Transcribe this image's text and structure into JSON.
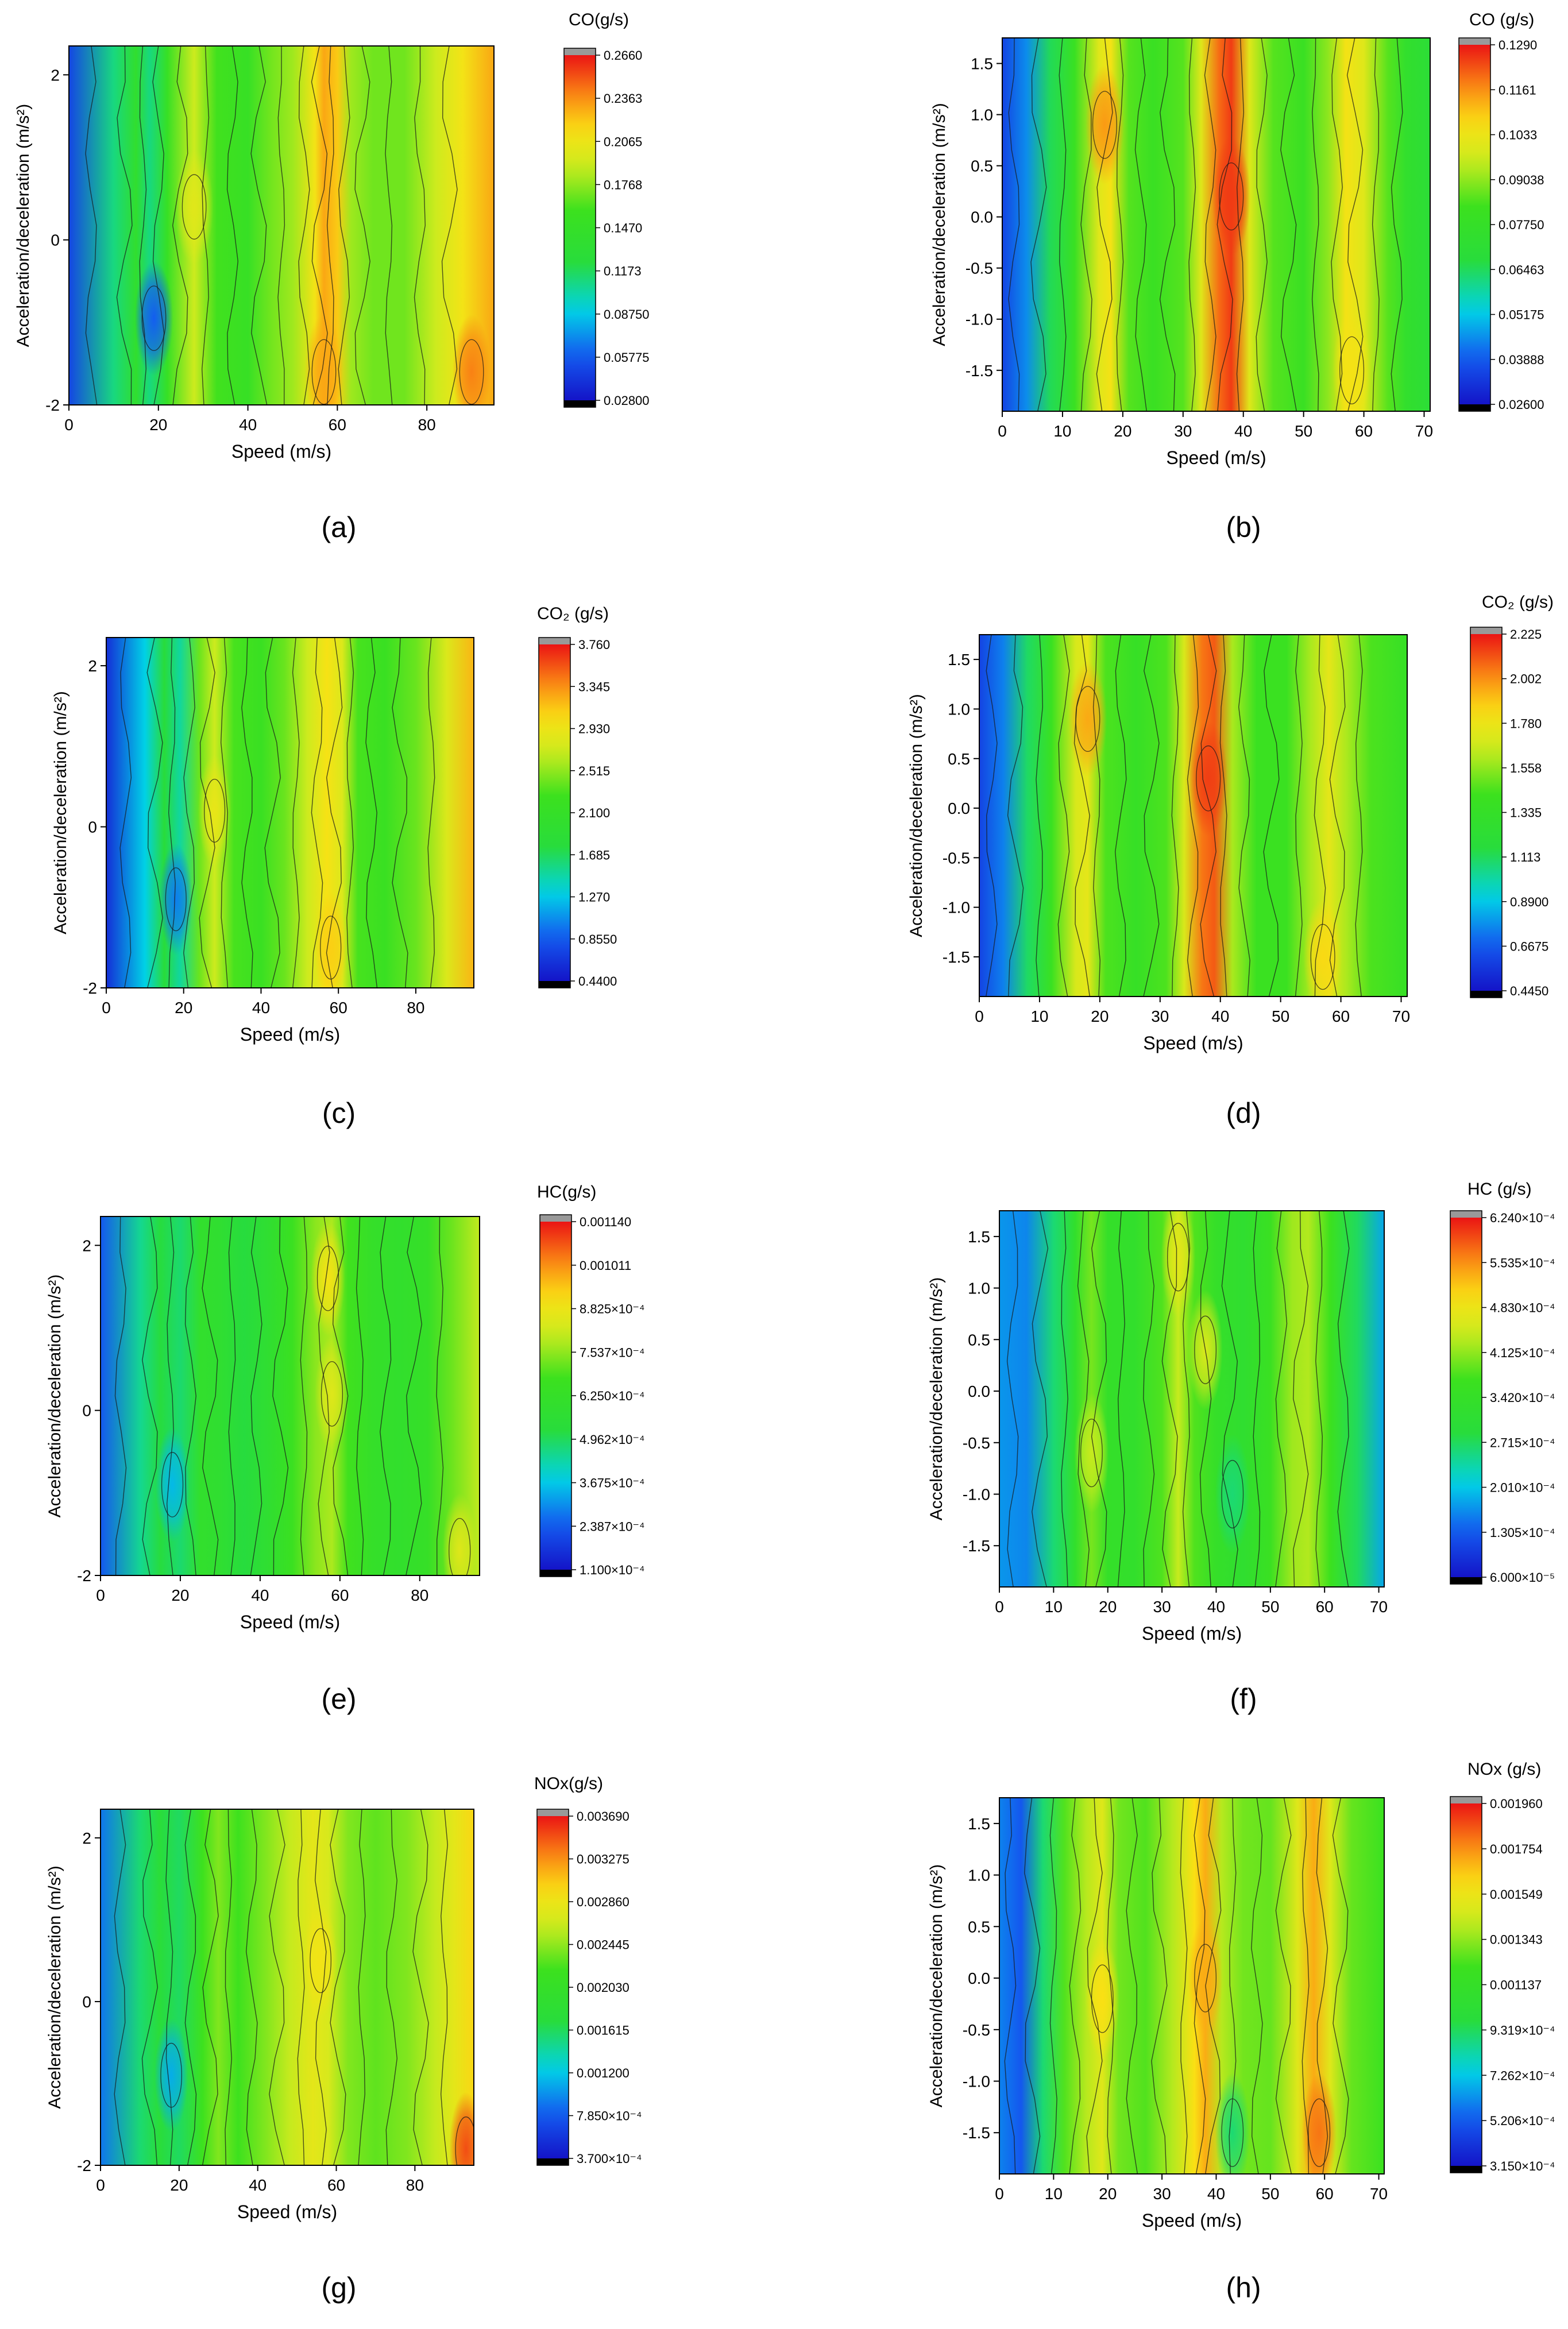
{
  "chart_data": [
    {
      "type": "heatmap",
      "label": "(a)",
      "xlabel": "Speed (m/s)",
      "ylabel": "Acceleration/deceleration (m/s²)",
      "xlim": [
        0,
        95
      ],
      "ylim": [
        -2,
        2.35
      ],
      "xticks": [
        "0",
        "20",
        "40",
        "60",
        "80"
      ],
      "yticks": [
        "-2",
        "0",
        "2"
      ],
      "colorbar_title": "CO(g/s)",
      "colorbar_ticks": [
        "0.2660",
        "0.2363",
        "0.2065",
        "0.1768",
        "0.1470",
        "0.1173",
        "0.08750",
        "0.05775",
        "0.02800"
      ],
      "bands": [
        [
          0,
          0.05
        ],
        [
          10,
          0.11
        ],
        [
          15,
          0.14
        ],
        [
          18,
          0.11
        ],
        [
          22,
          0.15
        ],
        [
          28,
          0.19
        ],
        [
          33,
          0.16
        ],
        [
          40,
          0.15
        ],
        [
          45,
          0.17
        ],
        [
          50,
          0.18
        ],
        [
          55,
          0.21
        ],
        [
          57,
          0.23
        ],
        [
          60,
          0.22
        ],
        [
          63,
          0.18
        ],
        [
          68,
          0.17
        ],
        [
          75,
          0.17
        ],
        [
          82,
          0.19
        ],
        [
          88,
          0.21
        ],
        [
          95,
          0.23
        ]
      ],
      "spots": [
        [
          19,
          -0.95,
          0.06
        ],
        [
          28,
          0.4,
          0.2
        ],
        [
          57,
          -1.6,
          0.23
        ],
        [
          90,
          -1.6,
          0.24
        ]
      ]
    },
    {
      "type": "heatmap",
      "label": "(b)",
      "xlabel": "Speed (m/s)",
      "ylabel": "Acceleration/deceleration (m/s²)",
      "xlim": [
        0,
        71
      ],
      "ylim": [
        -1.9,
        1.75
      ],
      "xticks": [
        "0",
        "10",
        "20",
        "30",
        "40",
        "50",
        "60",
        "70"
      ],
      "yticks": [
        "-1.5",
        "-1.0",
        "-0.5",
        "0.0",
        "0.5",
        "1.0",
        "1.5"
      ],
      "colorbar_title": "CO (g/s)",
      "colorbar_ticks": [
        "0.1290",
        "0.1161",
        "0.1033",
        "0.09038",
        "0.07750",
        "0.06463",
        "0.05175",
        "0.03888",
        "0.02600"
      ],
      "bands": [
        [
          0,
          0.035
        ],
        [
          4,
          0.045
        ],
        [
          8,
          0.065
        ],
        [
          12,
          0.08
        ],
        [
          16,
          0.1
        ],
        [
          18,
          0.105
        ],
        [
          21,
          0.085
        ],
        [
          25,
          0.08
        ],
        [
          30,
          0.085
        ],
        [
          33,
          0.1
        ],
        [
          36,
          0.12
        ],
        [
          38,
          0.125
        ],
        [
          41,
          0.1
        ],
        [
          45,
          0.085
        ],
        [
          50,
          0.08
        ],
        [
          54,
          0.09
        ],
        [
          57,
          0.105
        ],
        [
          60,
          0.1
        ],
        [
          64,
          0.085
        ],
        [
          67,
          0.075
        ],
        [
          71,
          0.07
        ]
      ],
      "spots": [
        [
          17,
          0.9,
          0.115
        ],
        [
          38,
          0.2,
          0.125
        ],
        [
          58,
          -1.5,
          0.105
        ]
      ]
    },
    {
      "type": "heatmap",
      "label": "(c)",
      "xlabel": "Speed (m/s)",
      "ylabel": "Acceleration/deceleration (m/s²)",
      "xlim": [
        0,
        95
      ],
      "ylim": [
        -2,
        2.35
      ],
      "xticks": [
        "0",
        "20",
        "40",
        "60",
        "80"
      ],
      "yticks": [
        "-2",
        "0",
        "2"
      ],
      "colorbar_title": "CO₂ (g/s)",
      "colorbar_ticks": [
        "3.760",
        "3.345",
        "2.930",
        "2.515",
        "2.100",
        "1.685",
        "1.270",
        "0.8550",
        "0.4400"
      ],
      "bands": [
        [
          0,
          0.6
        ],
        [
          10,
          1.3
        ],
        [
          15,
          1.8
        ],
        [
          19,
          1.5
        ],
        [
          24,
          2.4
        ],
        [
          28,
          2.7
        ],
        [
          33,
          2.3
        ],
        [
          40,
          2.2
        ],
        [
          46,
          2.4
        ],
        [
          52,
          2.7
        ],
        [
          57,
          3.0
        ],
        [
          61,
          2.8
        ],
        [
          65,
          2.3
        ],
        [
          72,
          2.2
        ],
        [
          80,
          2.4
        ],
        [
          88,
          2.8
        ],
        [
          95,
          3.2
        ]
      ],
      "spots": [
        [
          18,
          -0.9,
          1.0
        ],
        [
          28,
          0.2,
          2.9
        ],
        [
          58,
          -1.5,
          3.1
        ]
      ]
    },
    {
      "type": "heatmap",
      "label": "(d)",
      "xlabel": "Speed (m/s)",
      "ylabel": "Acceleration/deceleration (m/s²)",
      "xlim": [
        0,
        71
      ],
      "ylim": [
        -1.9,
        1.75
      ],
      "xticks": [
        "0",
        "10",
        "20",
        "30",
        "40",
        "50",
        "60",
        "70"
      ],
      "yticks": [
        "-1.5",
        "-1.0",
        "-0.5",
        "0.0",
        "0.5",
        "1.0",
        "1.5"
      ],
      "colorbar_title": "CO₂ (g/s)",
      "colorbar_ticks": [
        "2.225",
        "2.002",
        "1.780",
        "1.558",
        "1.335",
        "1.113",
        "0.8900",
        "0.6675",
        "0.4450"
      ],
      "bands": [
        [
          0,
          0.6
        ],
        [
          4,
          0.75
        ],
        [
          8,
          1.1
        ],
        [
          12,
          1.4
        ],
        [
          16,
          1.7
        ],
        [
          18,
          1.75
        ],
        [
          21,
          1.45
        ],
        [
          26,
          1.35
        ],
        [
          31,
          1.45
        ],
        [
          34,
          1.7
        ],
        [
          37,
          2.05
        ],
        [
          39,
          2.1
        ],
        [
          42,
          1.6
        ],
        [
          46,
          1.4
        ],
        [
          51,
          1.4
        ],
        [
          55,
          1.6
        ],
        [
          58,
          1.75
        ],
        [
          61,
          1.6
        ],
        [
          65,
          1.45
        ],
        [
          71,
          1.35
        ]
      ],
      "spots": [
        [
          18,
          0.9,
          1.95
        ],
        [
          38,
          0.3,
          2.15
        ],
        [
          57,
          -1.5,
          1.85
        ]
      ]
    },
    {
      "type": "heatmap",
      "label": "(e)",
      "xlabel": "Speed (m/s)",
      "ylabel": "Acceleration/deceleration (m/s²)",
      "xlim": [
        0,
        95
      ],
      "ylim": [
        -2,
        2.35
      ],
      "xticks": [
        "0",
        "20",
        "40",
        "60",
        "80"
      ],
      "yticks": [
        "-2",
        "0",
        "2"
      ],
      "colorbar_title": "HC(g/s)",
      "colorbar_ticks": [
        "0.001140",
        "0.001011",
        "8.825×10⁻⁴",
        "7.537×10⁻⁴",
        "6.250×10⁻⁴",
        "4.962×10⁻⁴",
        "3.675×10⁻⁴",
        "2.387×10⁻⁴",
        "1.100×10⁻⁴"
      ],
      "bands": [
        [
          0,
          0.00024
        ],
        [
          10,
          0.00045
        ],
        [
          15,
          0.00052
        ],
        [
          20,
          0.00048
        ],
        [
          25,
          0.0006
        ],
        [
          30,
          0.00058
        ],
        [
          36,
          0.00052
        ],
        [
          42,
          0.00058
        ],
        [
          48,
          0.00066
        ],
        [
          54,
          0.00075
        ],
        [
          58,
          0.00078
        ],
        [
          62,
          0.00068
        ],
        [
          68,
          0.00062
        ],
        [
          75,
          0.0006
        ],
        [
          82,
          0.00063
        ],
        [
          88,
          0.00072
        ],
        [
          95,
          0.0008
        ]
      ],
      "spots": [
        [
          57,
          1.6,
          0.0009
        ],
        [
          58,
          0.2,
          0.00085
        ],
        [
          90,
          -1.7,
          0.00085
        ],
        [
          18,
          -0.9,
          0.00035
        ]
      ]
    },
    {
      "type": "heatmap",
      "label": "(f)",
      "xlabel": "Speed (m/s)",
      "ylabel": "Acceleration/deceleration (m/s²)",
      "xlim": [
        0,
        71
      ],
      "ylim": [
        -1.9,
        1.75
      ],
      "xticks": [
        "0",
        "10",
        "20",
        "30",
        "40",
        "50",
        "60",
        "70"
      ],
      "yticks": [
        "-1.5",
        "-1.0",
        "-0.5",
        "0.0",
        "0.5",
        "1.0",
        "1.5"
      ],
      "colorbar_title": "HC (g/s)",
      "colorbar_ticks": [
        "6.240×10⁻⁴",
        "5.535×10⁻⁴",
        "4.830×10⁻⁴",
        "4.125×10⁻⁴",
        "3.420×10⁻⁴",
        "2.715×10⁻⁴",
        "2.010×10⁻⁴",
        "1.305×10⁻⁴",
        "6.000×10⁻⁵"
      ],
      "bands": [
        [
          0,
          0.00017
        ],
        [
          5,
          0.00016
        ],
        [
          10,
          0.00026
        ],
        [
          14,
          0.00033
        ],
        [
          17,
          0.0004
        ],
        [
          20,
          0.00034
        ],
        [
          25,
          0.00033
        ],
        [
          30,
          0.00038
        ],
        [
          33,
          0.00044
        ],
        [
          36,
          0.00038
        ],
        [
          40,
          0.00034
        ],
        [
          45,
          0.00032
        ],
        [
          50,
          0.00036
        ],
        [
          54,
          0.00042
        ],
        [
          57,
          0.00043
        ],
        [
          61,
          0.00037
        ],
        [
          66,
          0.00027
        ],
        [
          71,
          0.00018
        ]
      ],
      "spots": [
        [
          33,
          1.3,
          0.00047
        ],
        [
          38,
          0.4,
          0.00046
        ],
        [
          17,
          -0.6,
          0.00044
        ],
        [
          43,
          -1.0,
          0.00026
        ]
      ]
    },
    {
      "type": "heatmap",
      "label": "(g)",
      "xlabel": "Speed (m/s)",
      "ylabel": "Acceleration/deceleration (m/s²)",
      "xlim": [
        0,
        95
      ],
      "ylim": [
        -2,
        2.35
      ],
      "xticks": [
        "0",
        "20",
        "40",
        "60",
        "80"
      ],
      "yticks": [
        "-2",
        "0",
        "2"
      ],
      "colorbar_title": "NOx(g/s)",
      "colorbar_ticks": [
        "0.003690",
        "0.003275",
        "0.002860",
        "0.002445",
        "0.002030",
        "0.001615",
        "0.001200",
        "7.850×10⁻⁴",
        "3.700×10⁻⁴"
      ],
      "bands": [
        [
          0,
          0.0009
        ],
        [
          10,
          0.00155
        ],
        [
          15,
          0.00175
        ],
        [
          20,
          0.0016
        ],
        [
          26,
          0.0022
        ],
        [
          30,
          0.0024
        ],
        [
          35,
          0.0022
        ],
        [
          42,
          0.0024
        ],
        [
          48,
          0.0026
        ],
        [
          54,
          0.0028
        ],
        [
          58,
          0.0027
        ],
        [
          63,
          0.0024
        ],
        [
          70,
          0.0023
        ],
        [
          78,
          0.0024
        ],
        [
          85,
          0.0026
        ],
        [
          90,
          0.0028
        ],
        [
          95,
          0.003
        ]
      ],
      "spots": [
        [
          18,
          -0.9,
          0.0011
        ],
        [
          93,
          -1.8,
          0.0035
        ],
        [
          56,
          0.5,
          0.0029
        ]
      ]
    },
    {
      "type": "heatmap",
      "label": "(h)",
      "xlabel": "Speed (m/s)",
      "ylabel": "Acceleration/deceleration (m/s²)",
      "xlim": [
        0,
        71
      ],
      "ylim": [
        -1.9,
        1.75
      ],
      "xticks": [
        "0",
        "10",
        "20",
        "30",
        "40",
        "50",
        "60",
        "70"
      ],
      "yticks": [
        "-1.5",
        "-1.0",
        "-0.5",
        "0.0",
        "0.5",
        "1.0",
        "1.5"
      ],
      "colorbar_title": "NOx (g/s)",
      "colorbar_ticks": [
        "0.001960",
        "0.001754",
        "0.001549",
        "0.001343",
        "0.001137",
        "9.319×10⁻⁴",
        "7.262×10⁻⁴",
        "5.206×10⁻⁴",
        "3.150×10⁻⁴"
      ],
      "bands": [
        [
          0,
          0.0006
        ],
        [
          4,
          0.00052
        ],
        [
          8,
          0.0009
        ],
        [
          12,
          0.00125
        ],
        [
          16,
          0.0014
        ],
        [
          19,
          0.0015
        ],
        [
          22,
          0.0013
        ],
        [
          27,
          0.00125
        ],
        [
          32,
          0.0014
        ],
        [
          36,
          0.0016
        ],
        [
          38,
          0.0017
        ],
        [
          41,
          0.0014
        ],
        [
          45,
          0.0013
        ],
        [
          50,
          0.00128
        ],
        [
          55,
          0.0015
        ],
        [
          58,
          0.0017
        ],
        [
          61,
          0.0015
        ],
        [
          65,
          0.00128
        ],
        [
          71,
          0.0012
        ]
      ],
      "spots": [
        [
          59,
          -1.5,
          0.0018
        ],
        [
          38,
          0.0,
          0.0017
        ],
        [
          19,
          -0.2,
          0.0016
        ],
        [
          43,
          -1.5,
          0.0009
        ]
      ]
    }
  ]
}
